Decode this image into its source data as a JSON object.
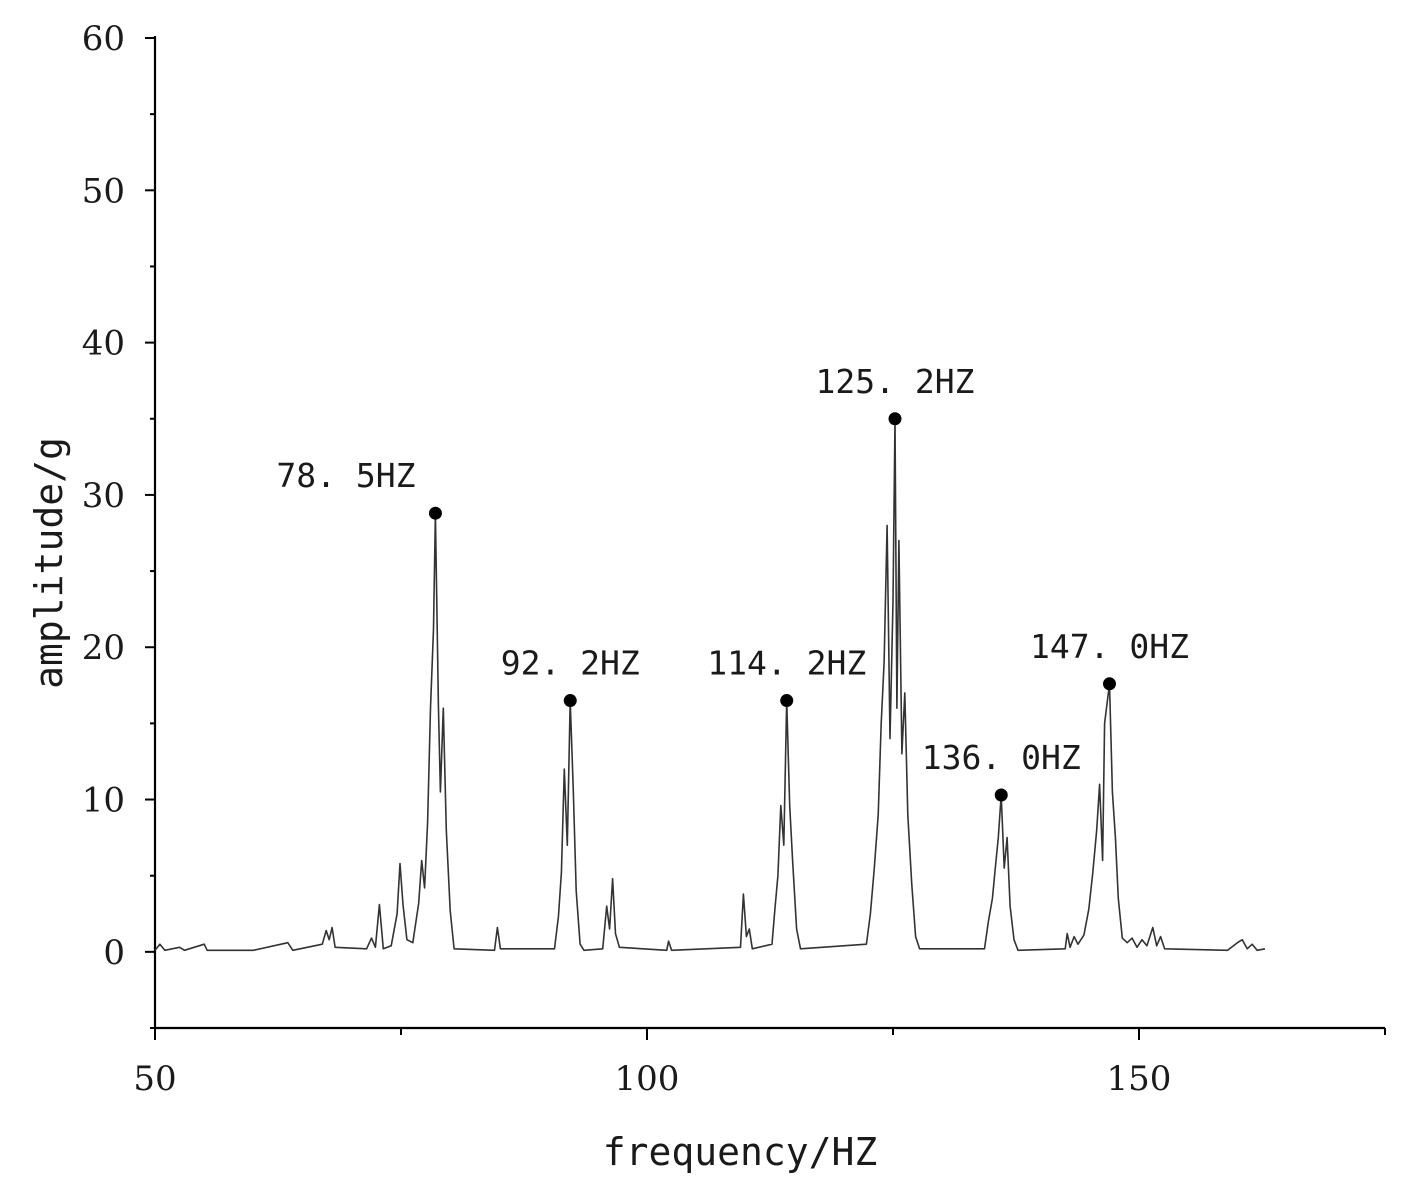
{
  "chart_data": {
    "type": "line",
    "title": "",
    "xlabel": "frequency/HZ",
    "ylabel": "amplitude/g",
    "xlim": [
      50,
      175
    ],
    "ylim": [
      -5,
      60
    ],
    "x_ticks": [
      50,
      100,
      150
    ],
    "y_ticks": [
      0,
      10,
      20,
      30,
      40,
      50,
      60
    ],
    "grid": false,
    "legend": "none",
    "series": [
      {
        "color": "#333333",
        "points": [
          [
            50,
            0.1
          ],
          [
            50.5,
            0.5
          ],
          [
            51,
            0.1
          ],
          [
            52.5,
            0.3
          ],
          [
            53,
            0.1
          ],
          [
            55,
            0.5
          ],
          [
            55.3,
            0.1
          ],
          [
            60,
            0.1
          ],
          [
            63.5,
            0.6
          ],
          [
            64,
            0.1
          ],
          [
            67,
            0.5
          ],
          [
            67.4,
            1.4
          ],
          [
            67.7,
            0.8
          ],
          [
            68,
            1.6
          ],
          [
            68.3,
            0.3
          ],
          [
            71.5,
            0.2
          ],
          [
            72,
            0.9
          ],
          [
            72.4,
            0.3
          ],
          [
            72.8,
            3.1
          ],
          [
            73.2,
            0.2
          ],
          [
            74,
            0.4
          ],
          [
            74.6,
            2.5
          ],
          [
            74.9,
            5.8
          ],
          [
            75.2,
            3.1
          ],
          [
            75.6,
            0.8
          ],
          [
            76.2,
            0.6
          ],
          [
            76.8,
            3.2
          ],
          [
            77.1,
            6.0
          ],
          [
            77.4,
            4.2
          ],
          [
            77.7,
            8.5
          ],
          [
            78,
            16.0
          ],
          [
            78.3,
            21.2
          ],
          [
            78.5,
            28.8
          ],
          [
            78.8,
            16.2
          ],
          [
            79,
            10.5
          ],
          [
            79.3,
            16.0
          ],
          [
            79.6,
            8.0
          ],
          [
            80,
            2.7
          ],
          [
            80.4,
            0.2
          ],
          [
            84.5,
            0.1
          ],
          [
            84.8,
            1.6
          ],
          [
            85.1,
            0.2
          ],
          [
            90.6,
            0.2
          ],
          [
            91,
            2.3
          ],
          [
            91.3,
            5.2
          ],
          [
            91.6,
            12.0
          ],
          [
            91.9,
            7.0
          ],
          [
            92.2,
            16.5
          ],
          [
            92.5,
            10.8
          ],
          [
            92.8,
            4.0
          ],
          [
            93.2,
            0.5
          ],
          [
            93.6,
            0.1
          ],
          [
            95.5,
            0.2
          ],
          [
            95.9,
            3.0
          ],
          [
            96.2,
            1.5
          ],
          [
            96.5,
            4.8
          ],
          [
            96.8,
            1.2
          ],
          [
            97.2,
            0.3
          ],
          [
            102,
            0.1
          ],
          [
            102.2,
            0.7
          ],
          [
            102.5,
            0.1
          ],
          [
            109.5,
            0.3
          ],
          [
            109.8,
            3.8
          ],
          [
            110.1,
            1.0
          ],
          [
            110.4,
            1.5
          ],
          [
            110.7,
            0.2
          ],
          [
            112.7,
            0.5
          ],
          [
            113,
            2.8
          ],
          [
            113.3,
            5.0
          ],
          [
            113.6,
            9.6
          ],
          [
            113.9,
            7.0
          ],
          [
            114.2,
            16.5
          ],
          [
            114.5,
            9.6
          ],
          [
            114.8,
            6.0
          ],
          [
            115.2,
            1.5
          ],
          [
            115.6,
            0.2
          ],
          [
            122.3,
            0.5
          ],
          [
            122.7,
            2.5
          ],
          [
            123.1,
            5.5
          ],
          [
            123.5,
            9.0
          ],
          [
            123.8,
            15.0
          ],
          [
            124.1,
            19.0
          ],
          [
            124.4,
            28.0
          ],
          [
            124.7,
            14.0
          ],
          [
            125,
            23.0
          ],
          [
            125.2,
            35.0
          ],
          [
            125.4,
            16.0
          ],
          [
            125.6,
            27.0
          ],
          [
            125.9,
            13.0
          ],
          [
            126.2,
            17.0
          ],
          [
            126.5,
            9.0
          ],
          [
            126.9,
            4.5
          ],
          [
            127.3,
            1.0
          ],
          [
            127.7,
            0.2
          ],
          [
            134.3,
            0.2
          ],
          [
            134.7,
            2.0
          ],
          [
            135.1,
            3.5
          ],
          [
            135.4,
            5.5
          ],
          [
            135.7,
            7.5
          ],
          [
            136,
            10.3
          ],
          [
            136.3,
            5.5
          ],
          [
            136.6,
            7.5
          ],
          [
            136.9,
            3.0
          ],
          [
            137.3,
            0.8
          ],
          [
            137.7,
            0.1
          ],
          [
            142.5,
            0.2
          ],
          [
            142.7,
            1.2
          ],
          [
            143,
            0.3
          ],
          [
            143.4,
            1.0
          ],
          [
            143.8,
            0.5
          ],
          [
            144.4,
            1.1
          ],
          [
            144.9,
            2.8
          ],
          [
            145.3,
            5.2
          ],
          [
            145.7,
            8.0
          ],
          [
            146,
            11.0
          ],
          [
            146.3,
            6.0
          ],
          [
            146.5,
            15.0
          ],
          [
            147,
            17.6
          ],
          [
            147.3,
            10.5
          ],
          [
            147.6,
            7.5
          ],
          [
            147.9,
            3.5
          ],
          [
            148.3,
            0.9
          ],
          [
            148.8,
            0.6
          ],
          [
            149.3,
            0.9
          ],
          [
            149.8,
            0.3
          ],
          [
            150.3,
            0.8
          ],
          [
            150.8,
            0.4
          ],
          [
            151.4,
            1.6
          ],
          [
            151.8,
            0.4
          ],
          [
            152.2,
            1.0
          ],
          [
            152.6,
            0.2
          ],
          [
            159,
            0.1
          ],
          [
            160,
            0.6
          ],
          [
            160.5,
            0.8
          ],
          [
            161,
            0.2
          ],
          [
            161.5,
            0.5
          ],
          [
            162,
            0.1
          ],
          [
            162.8,
            0.2
          ]
        ]
      }
    ],
    "annotations": [
      {
        "x": 78.5,
        "y": 28.8,
        "text": "78. 5HZ",
        "anchor": "left-above"
      },
      {
        "x": 92.2,
        "y": 16.5,
        "text": "92. 2HZ",
        "anchor": "above"
      },
      {
        "x": 114.2,
        "y": 16.5,
        "text": "114. 2HZ",
        "anchor": "above"
      },
      {
        "x": 125.2,
        "y": 35.0,
        "text": "125. 2HZ",
        "anchor": "above"
      },
      {
        "x": 136.0,
        "y": 10.3,
        "text": "136. 0HZ",
        "anchor": "above"
      },
      {
        "x": 147.0,
        "y": 17.6,
        "text": "147. 0HZ",
        "anchor": "above"
      }
    ]
  }
}
